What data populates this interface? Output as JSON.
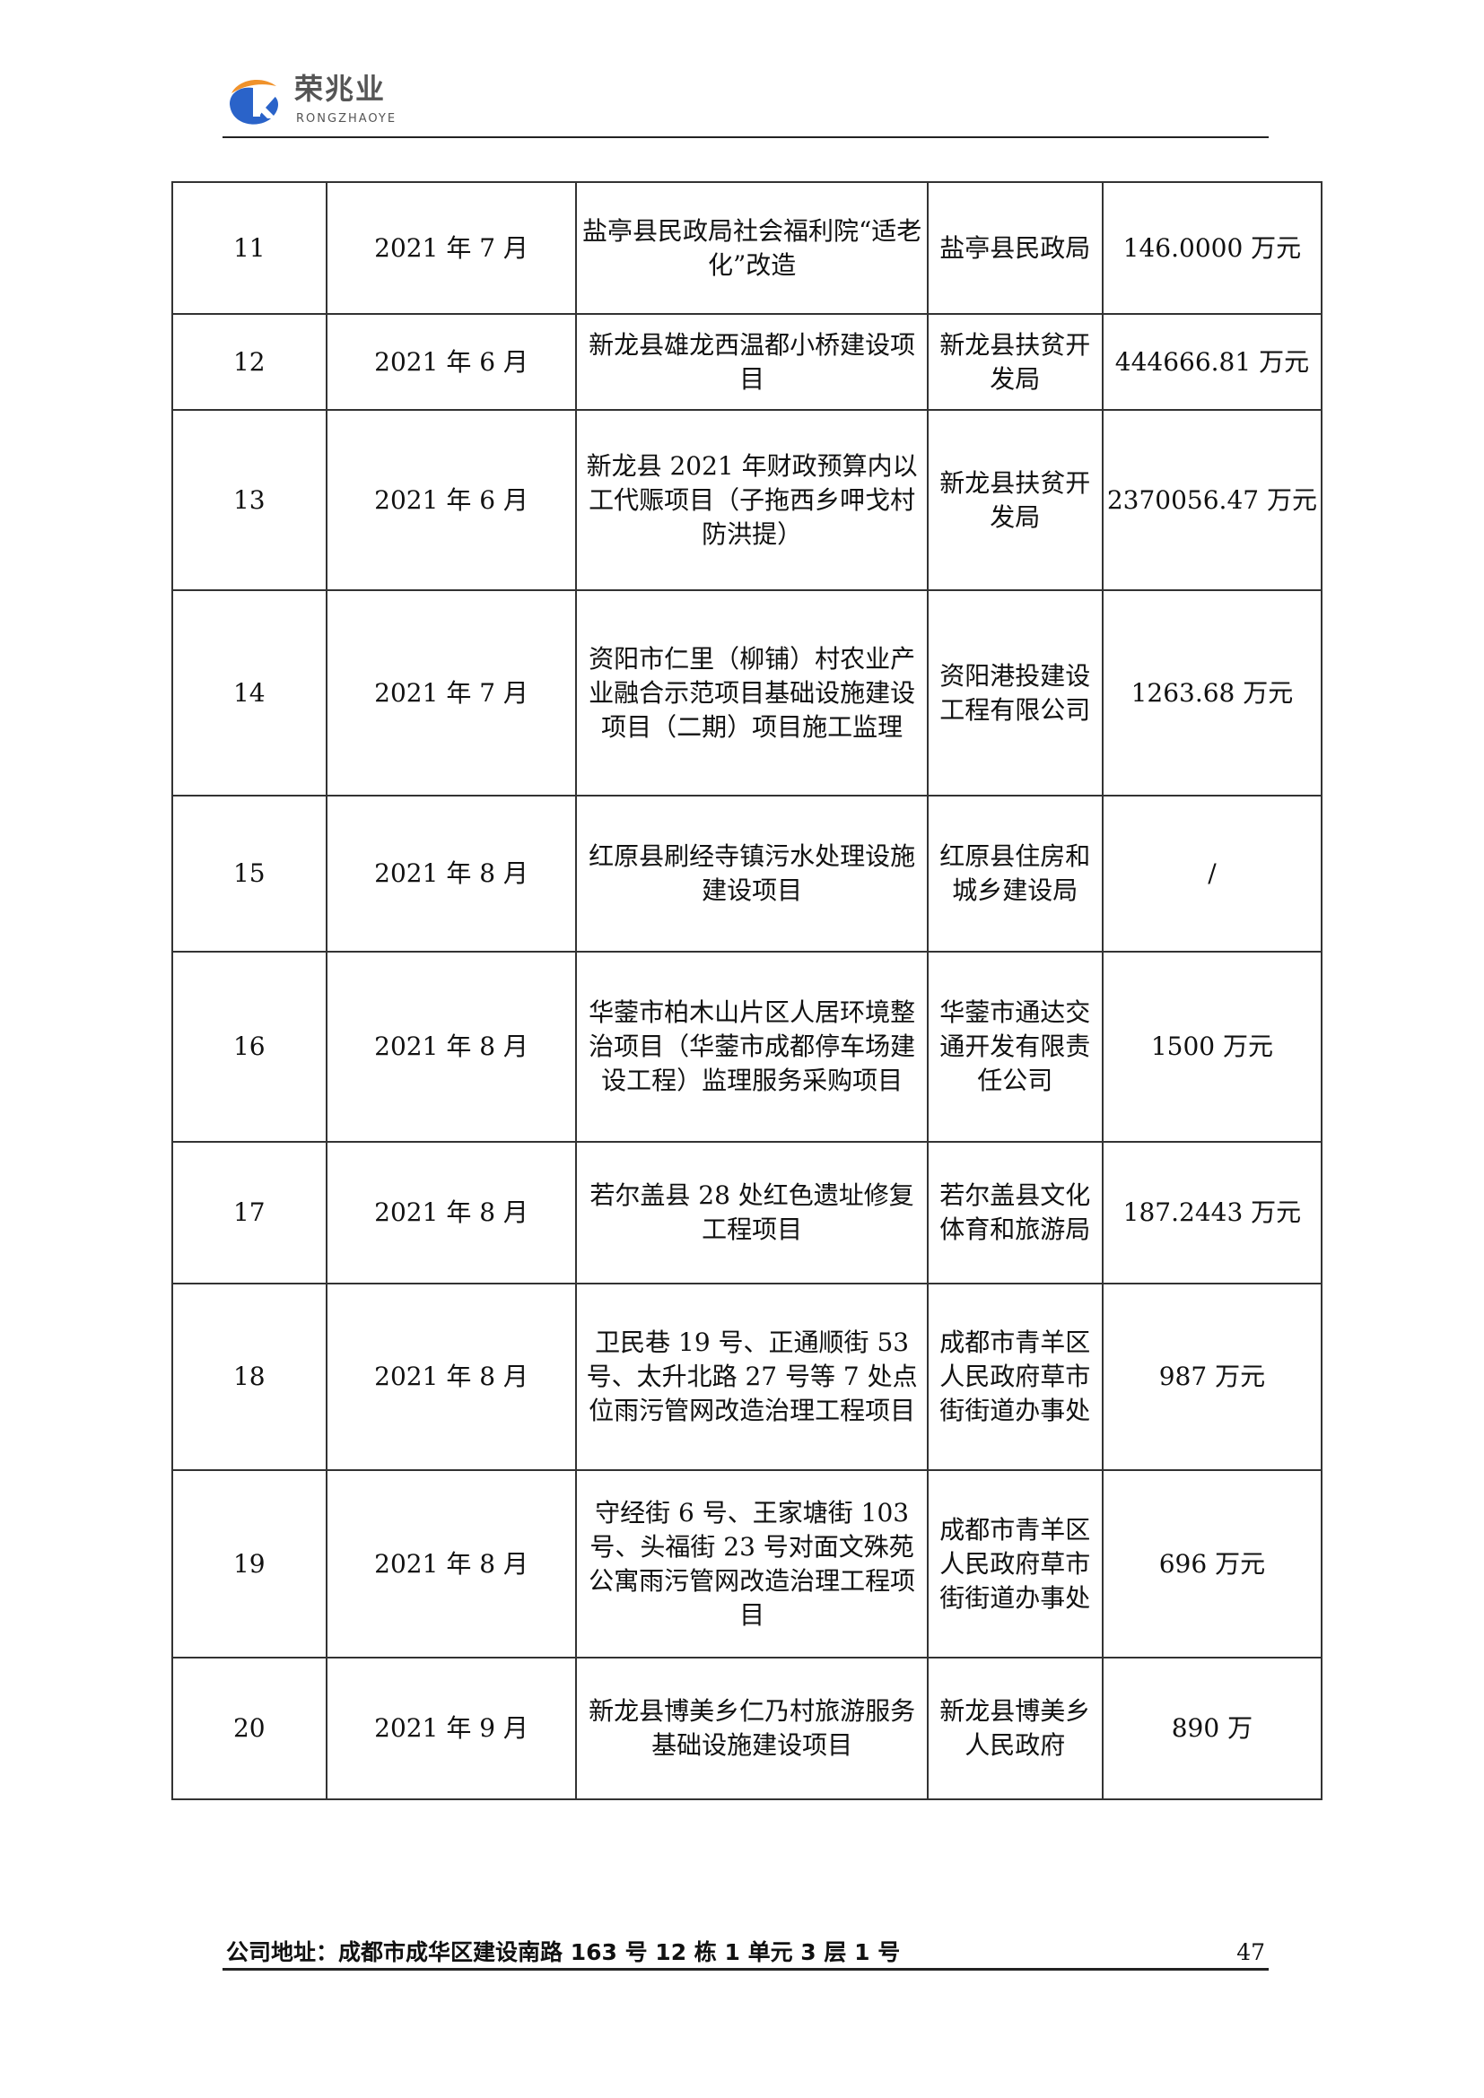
{
  "header": {
    "logo_cn": "荣兆业",
    "logo_en": "RONGZHAOYE"
  },
  "table": {
    "rows": [
      {
        "no": "11",
        "date": "2021 年 7 月",
        "name": "盐亭县民政局社会福利院“适老化”改造",
        "client": "盐亭县民政局",
        "amount": "146.0000 万元"
      },
      {
        "no": "12",
        "date": "2021 年 6 月",
        "name": "新龙县雄龙西温都小桥建设项目",
        "client": "新龙县扶贫开发局",
        "amount": "444666.81 万元"
      },
      {
        "no": "13",
        "date": "2021 年 6 月",
        "name": "新龙县 2021 年财政预算内以工代赈项目（子拖西乡呷戈村防洪提）",
        "client": "新龙县扶贫开发局",
        "amount": "2370056.47 万元"
      },
      {
        "no": "14",
        "date": "2021 年 7 月",
        "name": "资阳市仁里（柳铺）村农业产业融合示范项目基础设施建设项目（二期）项目施工监理",
        "client": "资阳港投建设工程有限公司",
        "amount": "1263.68 万元"
      },
      {
        "no": "15",
        "date": "2021 年 8 月",
        "name": "红原县刷经寺镇污水处理设施建设项目",
        "client": "红原县住房和城乡建设局",
        "amount": "/"
      },
      {
        "no": "16",
        "date": "2021 年 8 月",
        "name": "华蓥市柏木山片区人居环境整治项目（华蓥市成都停车场建设工程）监理服务采购项目",
        "client": "华蓥市通达交通开发有限责任公司",
        "amount": "1500 万元"
      },
      {
        "no": "17",
        "date": "2021 年 8 月",
        "name": "若尔盖县 28 处红色遗址修复工程项目",
        "client": "若尔盖县文化体育和旅游局",
        "amount": "187.2443 万元"
      },
      {
        "no": "18",
        "date": "2021 年 8 月",
        "name": "卫民巷 19 号、正通顺街 53 号、太升北路 27 号等 7 处点位雨污管网改造治理工程项目",
        "client": "成都市青羊区人民政府草市街街道办事处",
        "amount": "987 万元"
      },
      {
        "no": "19",
        "date": "2021 年 8 月",
        "name": "守经街 6 号、王家塘街 103 号、头福街 23 号对面文殊苑公寓雨污管网改造治理工程项目",
        "client": "成都市青羊区人民政府草市街街道办事处",
        "amount": "696 万元"
      },
      {
        "no": "20",
        "date": "2021 年 9 月",
        "name": "新龙县博美乡仁乃村旅游服务基础设施建设项目",
        "client": "新龙县博美乡人民政府",
        "amount": "890 万"
      }
    ]
  },
  "footer": {
    "address": "公司地址：成都市成华区建设南路 163 号 12 栋 1 单元 3 层 1 号",
    "page_number": "47"
  },
  "colors": {
    "logo_orange": "#f0922b",
    "logo_blue": "#2a63c9",
    "logo_text": "#555555"
  }
}
